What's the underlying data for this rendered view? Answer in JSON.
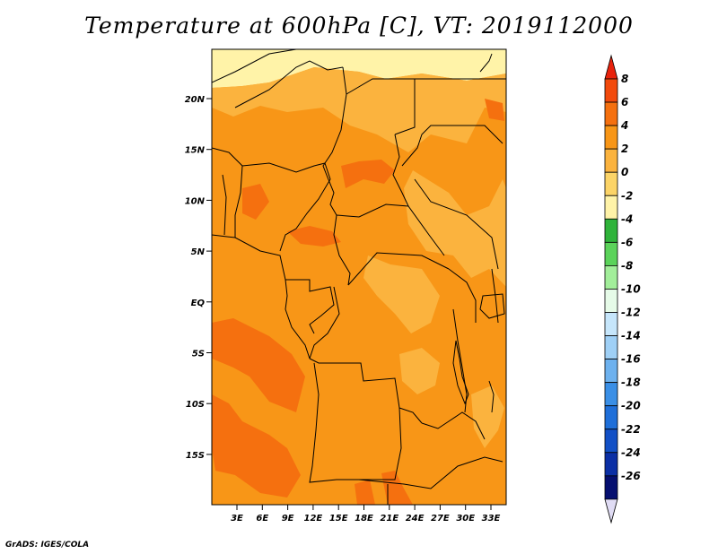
{
  "title": "Temperature at 600hPa [C], VT: 2019112000",
  "credit": "GrADS: IGES/COLA",
  "lat_labels": [
    "20N",
    "15N",
    "10N",
    "5N",
    "EQ",
    "5S",
    "10S",
    "15S"
  ],
  "lon_labels": [
    "3E",
    "6E",
    "9E",
    "12E",
    "15E",
    "18E",
    "21E",
    "24E",
    "27E",
    "30E",
    "33E"
  ],
  "colorbar": {
    "levels": [
      "8",
      "6",
      "4",
      "2",
      "0",
      "-2",
      "-4",
      "-6",
      "-8",
      "-10",
      "-12",
      "-14",
      "-16",
      "-18",
      "-20",
      "-22",
      "-24",
      "-26"
    ],
    "colors": [
      "#e8220c",
      "#f24a0c",
      "#f5700f",
      "#f89617",
      "#fbb33e",
      "#fcd467",
      "#fff3a8",
      "#2fb33a",
      "#5bd35a",
      "#a2ee9a",
      "#e6fbe8",
      "#c6e6fb",
      "#9fd0f6",
      "#6db1ee",
      "#3a8fe6",
      "#1f6fd9",
      "#1250c6",
      "#0b2fa5",
      "#050f70",
      "#e0dcf4"
    ]
  },
  "map_colors": {
    "base": "#f89617",
    "warm": "#f5700f",
    "cool": "#fbb33e",
    "cooler": "#fcd467",
    "coolest": "#fff3a8"
  }
}
